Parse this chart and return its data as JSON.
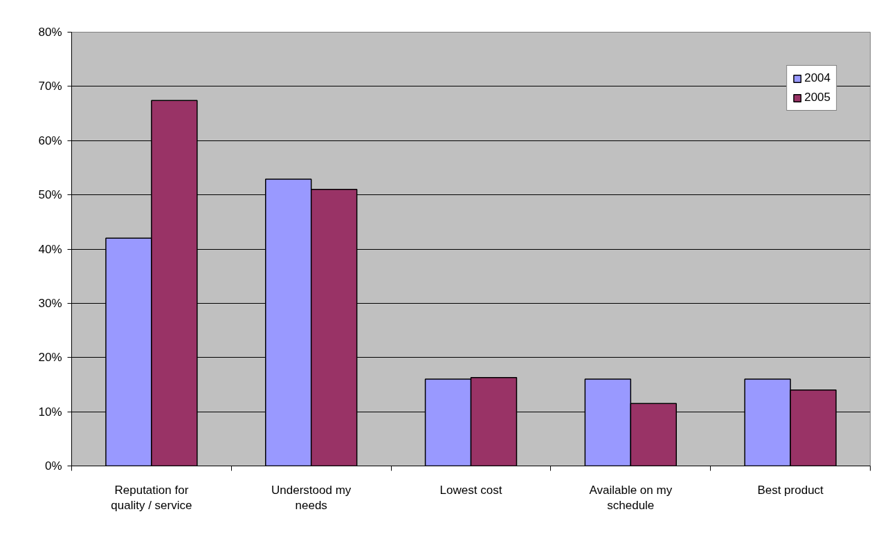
{
  "chart_data": {
    "type": "bar",
    "categories": [
      "Reputation for quality / service",
      "Understood my needs",
      "Lowest cost",
      "Available on my schedule",
      "Best product"
    ],
    "series": [
      {
        "name": "2004",
        "color": "#9999ff",
        "values": [
          42,
          52.9,
          16,
          16,
          16
        ]
      },
      {
        "name": "2005",
        "color": "#993366",
        "values": [
          67.4,
          51,
          16.3,
          11.5,
          14
        ]
      }
    ],
    "ylim": [
      0,
      80
    ],
    "yticks": [
      {
        "value": 0,
        "label": "0%"
      },
      {
        "value": 10,
        "label": "10%"
      },
      {
        "value": 20,
        "label": "20%"
      },
      {
        "value": 30,
        "label": "30%"
      },
      {
        "value": 40,
        "label": "40%"
      },
      {
        "value": 50,
        "label": "50%"
      },
      {
        "value": 60,
        "label": "60%"
      },
      {
        "value": 70,
        "label": "70%"
      },
      {
        "value": 80,
        "label": "80%"
      }
    ],
    "grid": "y",
    "legend": "top right"
  }
}
